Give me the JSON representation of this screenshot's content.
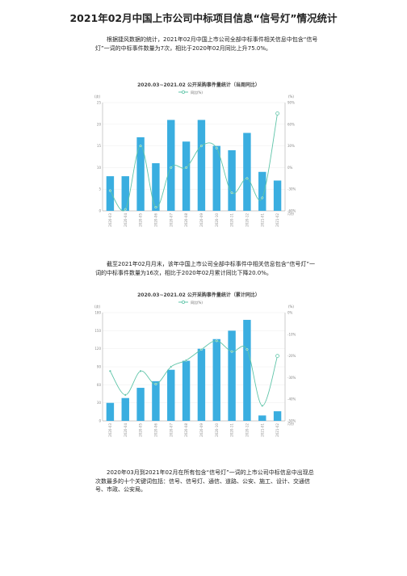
{
  "document": {
    "title": "2021年02月中国上市公司中标项目信息“信号灯”情况统计",
    "paragraph1": "根据捷风数据的统计，2021年02月中国上市公司全部中标事件相关信息中包含“信号灯”一词的中标事件数量为7次，相比于2020年02月同比上升75.0%。",
    "paragraph2": "截至2021年02月月末，该年中国上市公司全部中标事件中相关信息包含“信号灯”一词的中标事件数量为16次，相比于2020年02月累计同比下降20.0%。",
    "paragraph3": "2020年03月到2021年02月在所有包含“信号灯”一词的上市公司中标信息中出现总次数最多的十个关键词包括：信号、信号灯、通信、道路、公安、施工、设计、交通信号、市政、公安局。"
  },
  "colors": {
    "bar": "#3aaee0",
    "line": "#5ec4a8",
    "axis": "#9a9a9a",
    "grid": "#eeeeee"
  },
  "chart_data": [
    {
      "type": "bar",
      "title": "2020.03~2021.02 公开采购事件量统计（当周同比）",
      "legend": "同比(%)",
      "yleft_label": "(次)",
      "yright_label": "(%)",
      "xright_label": "月份",
      "categories": [
        "2020-03",
        "2020-04",
        "2020-05",
        "2020-06",
        "2020-07",
        "2020-08",
        "2020-09",
        "2020-10",
        "2020-11",
        "2020-12",
        "2021-01",
        "2021-02"
      ],
      "yleft_ticks": [
        "0",
        "5",
        "10",
        "15",
        "20",
        "25"
      ],
      "yright_ticks": [
        "-60%",
        "-30%",
        "0%",
        "30%",
        "60%",
        "90%"
      ],
      "yleft_lim": [
        0,
        25
      ],
      "yright_lim": [
        -60,
        90
      ],
      "series": [
        {
          "kind": "bar",
          "values": [
            8,
            8,
            17,
            11,
            21,
            16,
            21,
            15,
            14,
            18,
            9,
            7
          ]
        },
        {
          "kind": "line",
          "name": "同比(%)",
          "values": [
            -32,
            -58,
            30,
            -55,
            0,
            0,
            30,
            27,
            -35,
            -15,
            -42,
            75
          ]
        }
      ]
    },
    {
      "type": "bar",
      "title": "2020.03~2021.02 公开采购事件量统计（累计同比）",
      "legend": "同比(%)",
      "yleft_label": "(次)",
      "yright_label": "(%)",
      "xright_label": "月份",
      "categories": [
        "2020-03",
        "2020-04",
        "2020-05",
        "2020-06",
        "2020-07",
        "2020-08",
        "2020-09",
        "2020-10",
        "2020-11",
        "2020-12",
        "2021-01",
        "2021-02"
      ],
      "yleft_ticks": [
        "0",
        "30",
        "60",
        "90",
        "120",
        "150",
        "180"
      ],
      "yright_ticks": [
        "-50%",
        "-40%",
        "-30%",
        "-20%",
        "-10%",
        "0%"
      ],
      "yleft_lim": [
        0,
        180
      ],
      "yright_lim": [
        -50,
        0
      ],
      "series": [
        {
          "kind": "bar",
          "values": [
            30,
            38,
            55,
            66,
            85,
            100,
            120,
            136,
            150,
            168,
            9,
            16
          ]
        },
        {
          "kind": "line",
          "name": "同比(%)",
          "values": [
            -27,
            -38,
            -27,
            -33,
            -25,
            -22,
            -17,
            -13,
            -18,
            -17,
            -43,
            -20
          ]
        }
      ]
    }
  ]
}
